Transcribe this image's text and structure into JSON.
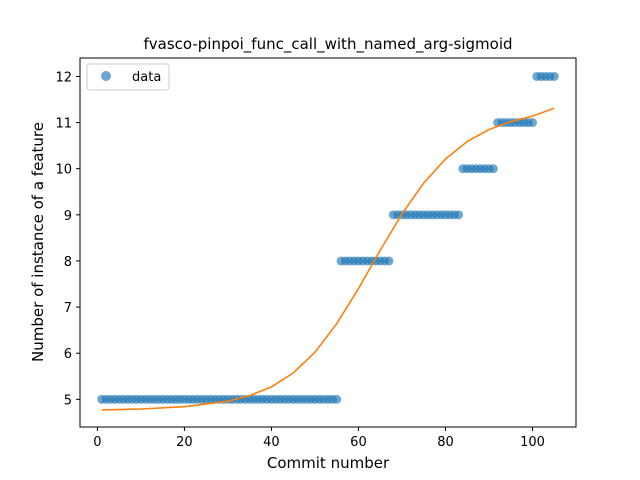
{
  "chart_data": {
    "type": "scatter",
    "title": "fvasco-pinpoi_func_call_with_named_arg-sigmoid",
    "xlabel": "Commit number",
    "ylabel": "Number of instance of a feature",
    "xlim": [
      -4,
      110
    ],
    "ylim": [
      4.4,
      12.4
    ],
    "xticks": [
      0,
      20,
      40,
      60,
      80,
      100
    ],
    "yticks": [
      5,
      6,
      7,
      8,
      9,
      10,
      11,
      12
    ],
    "grid": false,
    "legend": {
      "placement": "top-left",
      "entries": [
        "data"
      ]
    },
    "colors": {
      "data": "#1f77b4",
      "fit": "#ff7f0e"
    },
    "series": [
      {
        "name": "data",
        "kind": "scatter",
        "segments": [
          {
            "x_from": 1,
            "x_to": 55,
            "y": 5
          },
          {
            "x_from": 56,
            "x_to": 67,
            "y": 8
          },
          {
            "x_from": 68,
            "x_to": 83,
            "y": 9
          },
          {
            "x_from": 84,
            "x_to": 91,
            "y": 10
          },
          {
            "x_from": 92,
            "x_to": 100,
            "y": 11
          },
          {
            "x_from": 101,
            "x_to": 105,
            "y": 12
          }
        ]
      },
      {
        "kind": "line",
        "x": [
          1,
          10,
          20,
          30,
          35,
          40,
          45,
          50,
          55,
          60,
          65,
          70,
          75,
          80,
          85,
          90,
          95,
          100,
          105
        ],
        "y": [
          4.77,
          4.79,
          4.84,
          4.96,
          5.08,
          5.27,
          5.57,
          6.02,
          6.64,
          7.4,
          8.23,
          9.02,
          9.69,
          10.21,
          10.59,
          10.85,
          11.02,
          11.14,
          11.31
        ]
      }
    ]
  }
}
